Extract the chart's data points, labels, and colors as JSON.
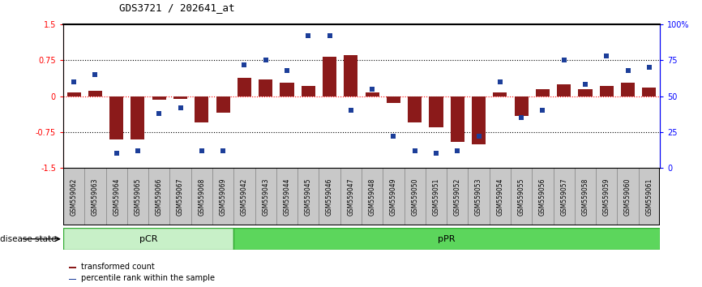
{
  "title": "GDS3721 / 202641_at",
  "samples": [
    "GSM559062",
    "GSM559063",
    "GSM559064",
    "GSM559065",
    "GSM559066",
    "GSM559067",
    "GSM559068",
    "GSM559069",
    "GSM559042",
    "GSM559043",
    "GSM559044",
    "GSM559045",
    "GSM559046",
    "GSM559047",
    "GSM559048",
    "GSM559049",
    "GSM559050",
    "GSM559051",
    "GSM559052",
    "GSM559053",
    "GSM559054",
    "GSM559055",
    "GSM559056",
    "GSM559057",
    "GSM559058",
    "GSM559059",
    "GSM559060",
    "GSM559061"
  ],
  "bar_values": [
    0.08,
    0.12,
    -0.9,
    -0.9,
    -0.07,
    -0.05,
    -0.55,
    -0.35,
    0.38,
    0.35,
    0.28,
    0.22,
    0.82,
    0.85,
    0.07,
    -0.15,
    -0.55,
    -0.65,
    -0.95,
    -1.0,
    0.08,
    -0.42,
    0.15,
    0.25,
    0.15,
    0.22,
    0.28,
    0.18
  ],
  "dot_values": [
    60,
    65,
    10,
    12,
    38,
    42,
    12,
    12,
    72,
    75,
    68,
    92,
    92,
    40,
    55,
    22,
    12,
    10,
    12,
    22,
    60,
    35,
    40,
    75,
    58,
    78,
    68,
    70
  ],
  "pCR_count": 8,
  "pPR_count": 20,
  "ylim": [
    -1.5,
    1.5
  ],
  "y2lim": [
    0,
    100
  ],
  "y_ticks": [
    -1.5,
    -0.75,
    0.0,
    0.75,
    1.5
  ],
  "y2_ticks": [
    0,
    25,
    50,
    75,
    100
  ],
  "y2_ticklabels": [
    "0",
    "25",
    "50",
    "75",
    "100%"
  ],
  "hline_dotted": [
    0.75,
    -0.75
  ],
  "hline_red": 0.0,
  "bar_color": "#8B1A1A",
  "dot_color": "#1C3E99",
  "pCR_color": "#C8F0C8",
  "pPR_color": "#5CD65C",
  "sample_bg_color": "#C8C8C8",
  "sample_border_color": "#888888",
  "disease_state_label": "disease state",
  "pCR_label": "pCR",
  "pPR_label": "pPR",
  "legend_bar": "transformed count",
  "legend_dot": "percentile rank within the sample",
  "title_fontsize": 9,
  "axis_label_fontsize": 7,
  "tick_label_fontsize": 6,
  "sample_label_fontsize": 5.5,
  "legend_fontsize": 7,
  "disease_state_fontsize": 7.5
}
